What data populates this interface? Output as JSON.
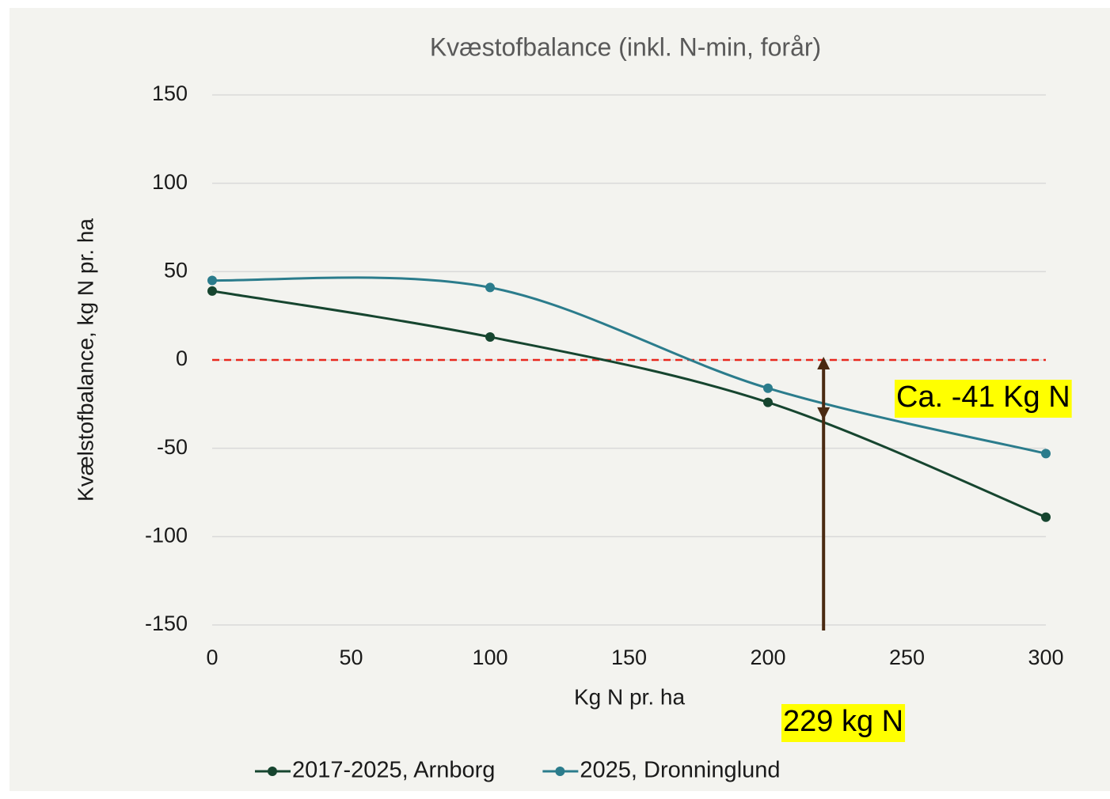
{
  "chart_data": {
    "type": "line",
    "title": "Kvæstofbalance (inkl. N-min, forår)",
    "xlabel": "Kg N pr. ha",
    "ylabel": "Kvælstofbalance,  kg N pr. ha",
    "x": [
      0,
      100,
      200,
      300
    ],
    "series": [
      {
        "name": "2017-2025, Arnborg",
        "color": "#16452f",
        "values": [
          39,
          13,
          -24,
          -89
        ]
      },
      {
        "name": "2025, Dronninglund",
        "color": "#2b7c8c",
        "values": [
          45,
          41,
          -16,
          -53
        ]
      }
    ],
    "xlim": [
      0,
      300
    ],
    "xticks": [
      0,
      50,
      100,
      150,
      200,
      250,
      300
    ],
    "ylim": [
      -150,
      150
    ],
    "yticks": [
      150,
      100,
      50,
      0,
      -50,
      -100,
      -150
    ],
    "grid": true,
    "legend": "bottom",
    "reference_line": {
      "value": 0,
      "color": "#e8281e"
    },
    "arrow": {
      "x": 220,
      "from": 0,
      "to": -34,
      "color": "#4a2a12"
    },
    "annotations": [
      {
        "text": "Ca. -41 Kg N"
      },
      {
        "text": "229 kg N"
      }
    ]
  }
}
